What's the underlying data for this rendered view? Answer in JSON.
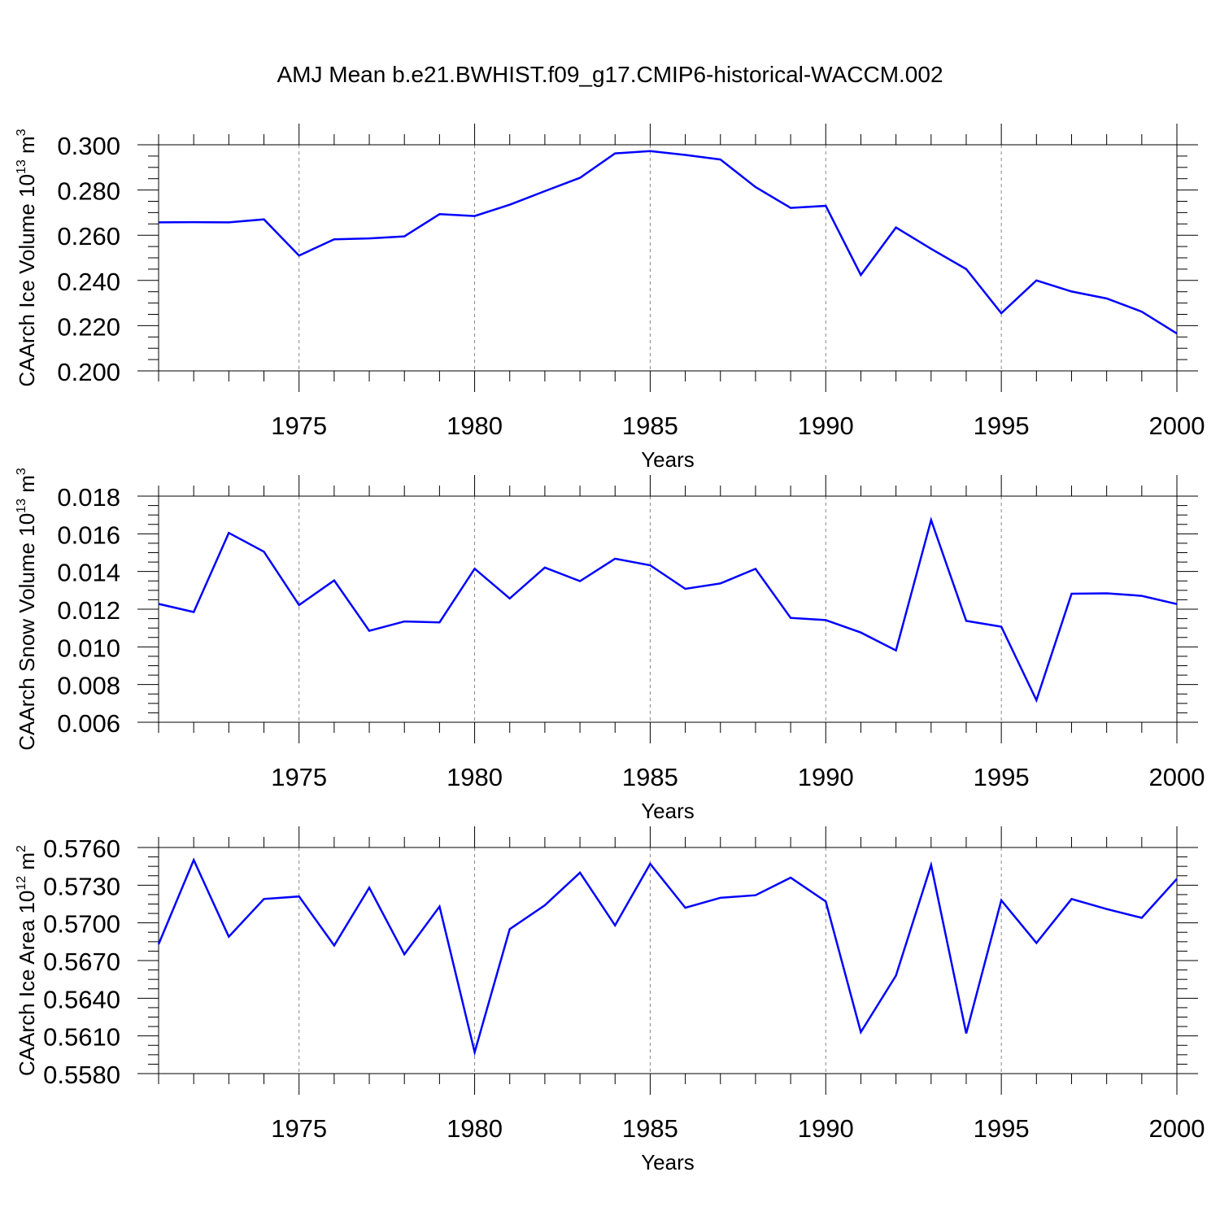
{
  "title": "AMJ Mean b.e21.BWHIST.f09_g17.CMIP6-historical-WACCM.002",
  "chart_data": [
    {
      "type": "line",
      "title": "",
      "xlabel": "Years",
      "ylabel": "CAArch Ice Volume 10",
      "ylabel_exp": "13",
      "ylabel_unit": " m",
      "ylabel_unit_exp": "3",
      "xlim": [
        1971,
        2000
      ],
      "ylim": [
        0.2,
        0.3
      ],
      "xticks": [
        1975,
        1980,
        1985,
        1990,
        1995,
        2000
      ],
      "yticks": [
        0.2,
        0.22,
        0.24,
        0.26,
        0.28,
        0.3
      ],
      "ytick_labels": [
        "0.200",
        "0.220",
        "0.240",
        "0.260",
        "0.280",
        "0.300"
      ],
      "grid": "x-dashed",
      "color": "#0000ff",
      "x": [
        1971,
        1972,
        1973,
        1974,
        1975,
        1976,
        1977,
        1978,
        1979,
        1980,
        1981,
        1982,
        1983,
        1984,
        1985,
        1986,
        1987,
        1988,
        1989,
        1990,
        1991,
        1992,
        1993,
        1994,
        1995,
        1996,
        1997,
        1998,
        1999,
        2000
      ],
      "values": [
        0.2657,
        0.2658,
        0.2657,
        0.267,
        0.251,
        0.2582,
        0.2586,
        0.2595,
        0.2693,
        0.2685,
        0.2735,
        0.2795,
        0.2854,
        0.2962,
        0.2972,
        0.2955,
        0.2935,
        0.2813,
        0.2721,
        0.273,
        0.2424,
        0.2634,
        0.254,
        0.245,
        0.2255,
        0.24,
        0.2351,
        0.232,
        0.2262,
        0.2165
      ]
    },
    {
      "type": "line",
      "title": "",
      "xlabel": "Years",
      "ylabel": "CAArch Snow Volume 10",
      "ylabel_exp": "13",
      "ylabel_unit": " m",
      "ylabel_unit_exp": "3",
      "xlim": [
        1971,
        2000
      ],
      "ylim": [
        0.006,
        0.018
      ],
      "xticks": [
        1975,
        1980,
        1985,
        1990,
        1995,
        2000
      ],
      "yticks": [
        0.006,
        0.008,
        0.01,
        0.012,
        0.014,
        0.016,
        0.018
      ],
      "ytick_labels": [
        "0.006",
        "0.008",
        "0.010",
        "0.012",
        "0.014",
        "0.016",
        "0.018"
      ],
      "grid": "x-dashed",
      "color": "#0000ff",
      "x": [
        1971,
        1972,
        1973,
        1974,
        1975,
        1976,
        1977,
        1978,
        1979,
        1980,
        1981,
        1982,
        1983,
        1984,
        1985,
        1986,
        1987,
        1988,
        1989,
        1990,
        1991,
        1992,
        1993,
        1994,
        1995,
        1996,
        1997,
        1998,
        1999,
        2000
      ],
      "values": [
        0.01228,
        0.01185,
        0.01605,
        0.01505,
        0.01222,
        0.01353,
        0.01085,
        0.01135,
        0.0113,
        0.01415,
        0.01257,
        0.01421,
        0.01349,
        0.01468,
        0.01433,
        0.01308,
        0.01337,
        0.01414,
        0.01154,
        0.01142,
        0.01076,
        0.00981,
        0.01673,
        0.01138,
        0.01107,
        0.00717,
        0.01282,
        0.01284,
        0.01271,
        0.01227
      ]
    },
    {
      "type": "line",
      "title": "",
      "xlabel": "Years",
      "ylabel": "CAArch Ice Area 10",
      "ylabel_exp": "12",
      "ylabel_unit": " m",
      "ylabel_unit_exp": "2",
      "xlim": [
        1971,
        2000
      ],
      "ylim": [
        0.558,
        0.576
      ],
      "xticks": [
        1975,
        1980,
        1985,
        1990,
        1995,
        2000
      ],
      "yticks": [
        0.558,
        0.561,
        0.564,
        0.567,
        0.57,
        0.573,
        0.576
      ],
      "ytick_labels": [
        "0.5580",
        "0.5610",
        "0.5640",
        "0.5670",
        "0.5700",
        "0.5730",
        "0.5760"
      ],
      "grid": "x-dashed",
      "color": "#0000ff",
      "x": [
        1971,
        1972,
        1973,
        1974,
        1975,
        1976,
        1977,
        1978,
        1979,
        1980,
        1981,
        1982,
        1983,
        1984,
        1985,
        1986,
        1987,
        1988,
        1989,
        1990,
        1991,
        1992,
        1993,
        1994,
        1995,
        1996,
        1997,
        1998,
        1999,
        2000
      ],
      "values": [
        0.5683,
        0.575,
        0.5689,
        0.5719,
        0.5721,
        0.5682,
        0.5728,
        0.5675,
        0.5713,
        0.5597,
        0.5695,
        0.5714,
        0.574,
        0.5698,
        0.5747,
        0.5712,
        0.572,
        0.5722,
        0.5736,
        0.5717,
        0.5613,
        0.5658,
        0.5746,
        0.5612,
        0.5718,
        0.5684,
        0.5719,
        0.5711,
        0.5704,
        0.5735
      ]
    }
  ]
}
